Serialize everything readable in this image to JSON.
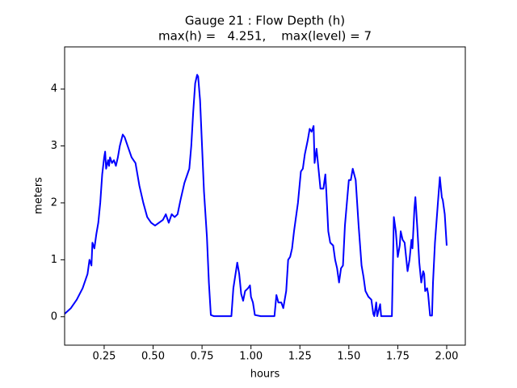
{
  "chart_data": {
    "type": "line",
    "title": [
      "Gauge 21 : Flow Depth (h)",
      "max(h) =   4.251,    max(level) = 7"
    ],
    "xlabel": "hours",
    "ylabel": "meters",
    "x": [
      0.048,
      0.08,
      0.11,
      0.14,
      0.165,
      0.175,
      0.185,
      0.19,
      0.2,
      0.21,
      0.22,
      0.23,
      0.24,
      0.25,
      0.255,
      0.26,
      0.27,
      0.275,
      0.28,
      0.29,
      0.3,
      0.31,
      0.32,
      0.33,
      0.345,
      0.355,
      0.37,
      0.39,
      0.4,
      0.41,
      0.42,
      0.43,
      0.45,
      0.47,
      0.49,
      0.51,
      0.53,
      0.55,
      0.565,
      0.58,
      0.595,
      0.61,
      0.625,
      0.64,
      0.66,
      0.675,
      0.685,
      0.695,
      0.705,
      0.715,
      0.725,
      0.73,
      0.74,
      0.75,
      0.76,
      0.775,
      0.785,
      0.795,
      0.81,
      0.9,
      0.91,
      0.93,
      0.94,
      0.95,
      0.96,
      0.97,
      0.985,
      0.995,
      1.0,
      1.01,
      1.02,
      1.05,
      1.12,
      1.13,
      1.14,
      1.155,
      1.165,
      1.18,
      1.19,
      1.2,
      1.21,
      1.22,
      1.24,
      1.255,
      1.265,
      1.275,
      1.29,
      1.3,
      1.31,
      1.32,
      1.325,
      1.335,
      1.345,
      1.355,
      1.37,
      1.38,
      1.385,
      1.395,
      1.405,
      1.42,
      1.43,
      1.44,
      1.45,
      1.46,
      1.47,
      1.48,
      1.49,
      1.5,
      1.51,
      1.52,
      1.535,
      1.55,
      1.565,
      1.575,
      1.585,
      1.6,
      1.615,
      1.625,
      1.63,
      1.64,
      1.645,
      1.66,
      1.665,
      1.72,
      1.73,
      1.74,
      1.75,
      1.76,
      1.765,
      1.775,
      1.785,
      1.8,
      1.81,
      1.82,
      1.825,
      1.835,
      1.84,
      1.85,
      1.86,
      1.87,
      1.88,
      1.885,
      1.89,
      1.9,
      1.905,
      1.915,
      1.925,
      1.93,
      1.94,
      1.955,
      1.965,
      1.975,
      1.98,
      1.99,
      2.0
    ],
    "series": [
      {
        "name": "h",
        "color": "#0000ff",
        "values": [
          0.05,
          0.15,
          0.3,
          0.5,
          0.75,
          1.0,
          0.9,
          1.3,
          1.2,
          1.45,
          1.65,
          2.0,
          2.5,
          2.8,
          2.9,
          2.6,
          2.75,
          2.65,
          2.8,
          2.7,
          2.75,
          2.65,
          2.8,
          3.0,
          3.2,
          3.15,
          3.0,
          2.8,
          2.75,
          2.7,
          2.5,
          2.3,
          2.0,
          1.75,
          1.65,
          1.6,
          1.65,
          1.7,
          1.8,
          1.65,
          1.8,
          1.75,
          1.8,
          2.05,
          2.35,
          2.5,
          2.6,
          3.0,
          3.6,
          4.1,
          4.25,
          4.22,
          3.8,
          3.0,
          2.2,
          1.4,
          0.6,
          0.03,
          0.01,
          0.01,
          0.5,
          0.95,
          0.75,
          0.4,
          0.28,
          0.45,
          0.5,
          0.55,
          0.35,
          0.25,
          0.03,
          0.01,
          0.01,
          0.38,
          0.25,
          0.25,
          0.15,
          0.45,
          1.0,
          1.05,
          1.2,
          1.5,
          2.0,
          2.55,
          2.6,
          2.85,
          3.1,
          3.3,
          3.25,
          3.35,
          2.7,
          2.95,
          2.6,
          2.25,
          2.25,
          2.5,
          2.2,
          1.5,
          1.3,
          1.25,
          1.0,
          0.85,
          0.6,
          0.85,
          0.9,
          1.6,
          2.0,
          2.4,
          2.4,
          2.6,
          2.4,
          1.6,
          0.9,
          0.7,
          0.45,
          0.35,
          0.3,
          0.05,
          0.01,
          0.25,
          0.01,
          0.22,
          0.01,
          0.01,
          1.75,
          1.5,
          1.05,
          1.25,
          1.5,
          1.35,
          1.3,
          0.8,
          1.0,
          1.35,
          1.2,
          1.9,
          2.1,
          1.55,
          0.95,
          0.6,
          0.8,
          0.75,
          0.45,
          0.5,
          0.4,
          0.02,
          0.02,
          0.6,
          1.3,
          2.0,
          2.45,
          2.1,
          2.05,
          1.8,
          1.25
        ]
      }
    ],
    "xlim": [
      0.048,
      2.095
    ],
    "ylim": [
      -0.5,
      4.74
    ],
    "xticks": [
      0.25,
      {
        "value": 0.5,
        "label": "0.50"
      },
      0.75,
      {
        "value": 1.0,
        "label": "1.00"
      },
      1.25,
      {
        "value": 1.5,
        "label": "1.50"
      },
      1.75,
      {
        "value": 2.0,
        "label": "2.00"
      }
    ],
    "yticks": [
      0,
      1,
      2,
      3,
      4
    ]
  }
}
